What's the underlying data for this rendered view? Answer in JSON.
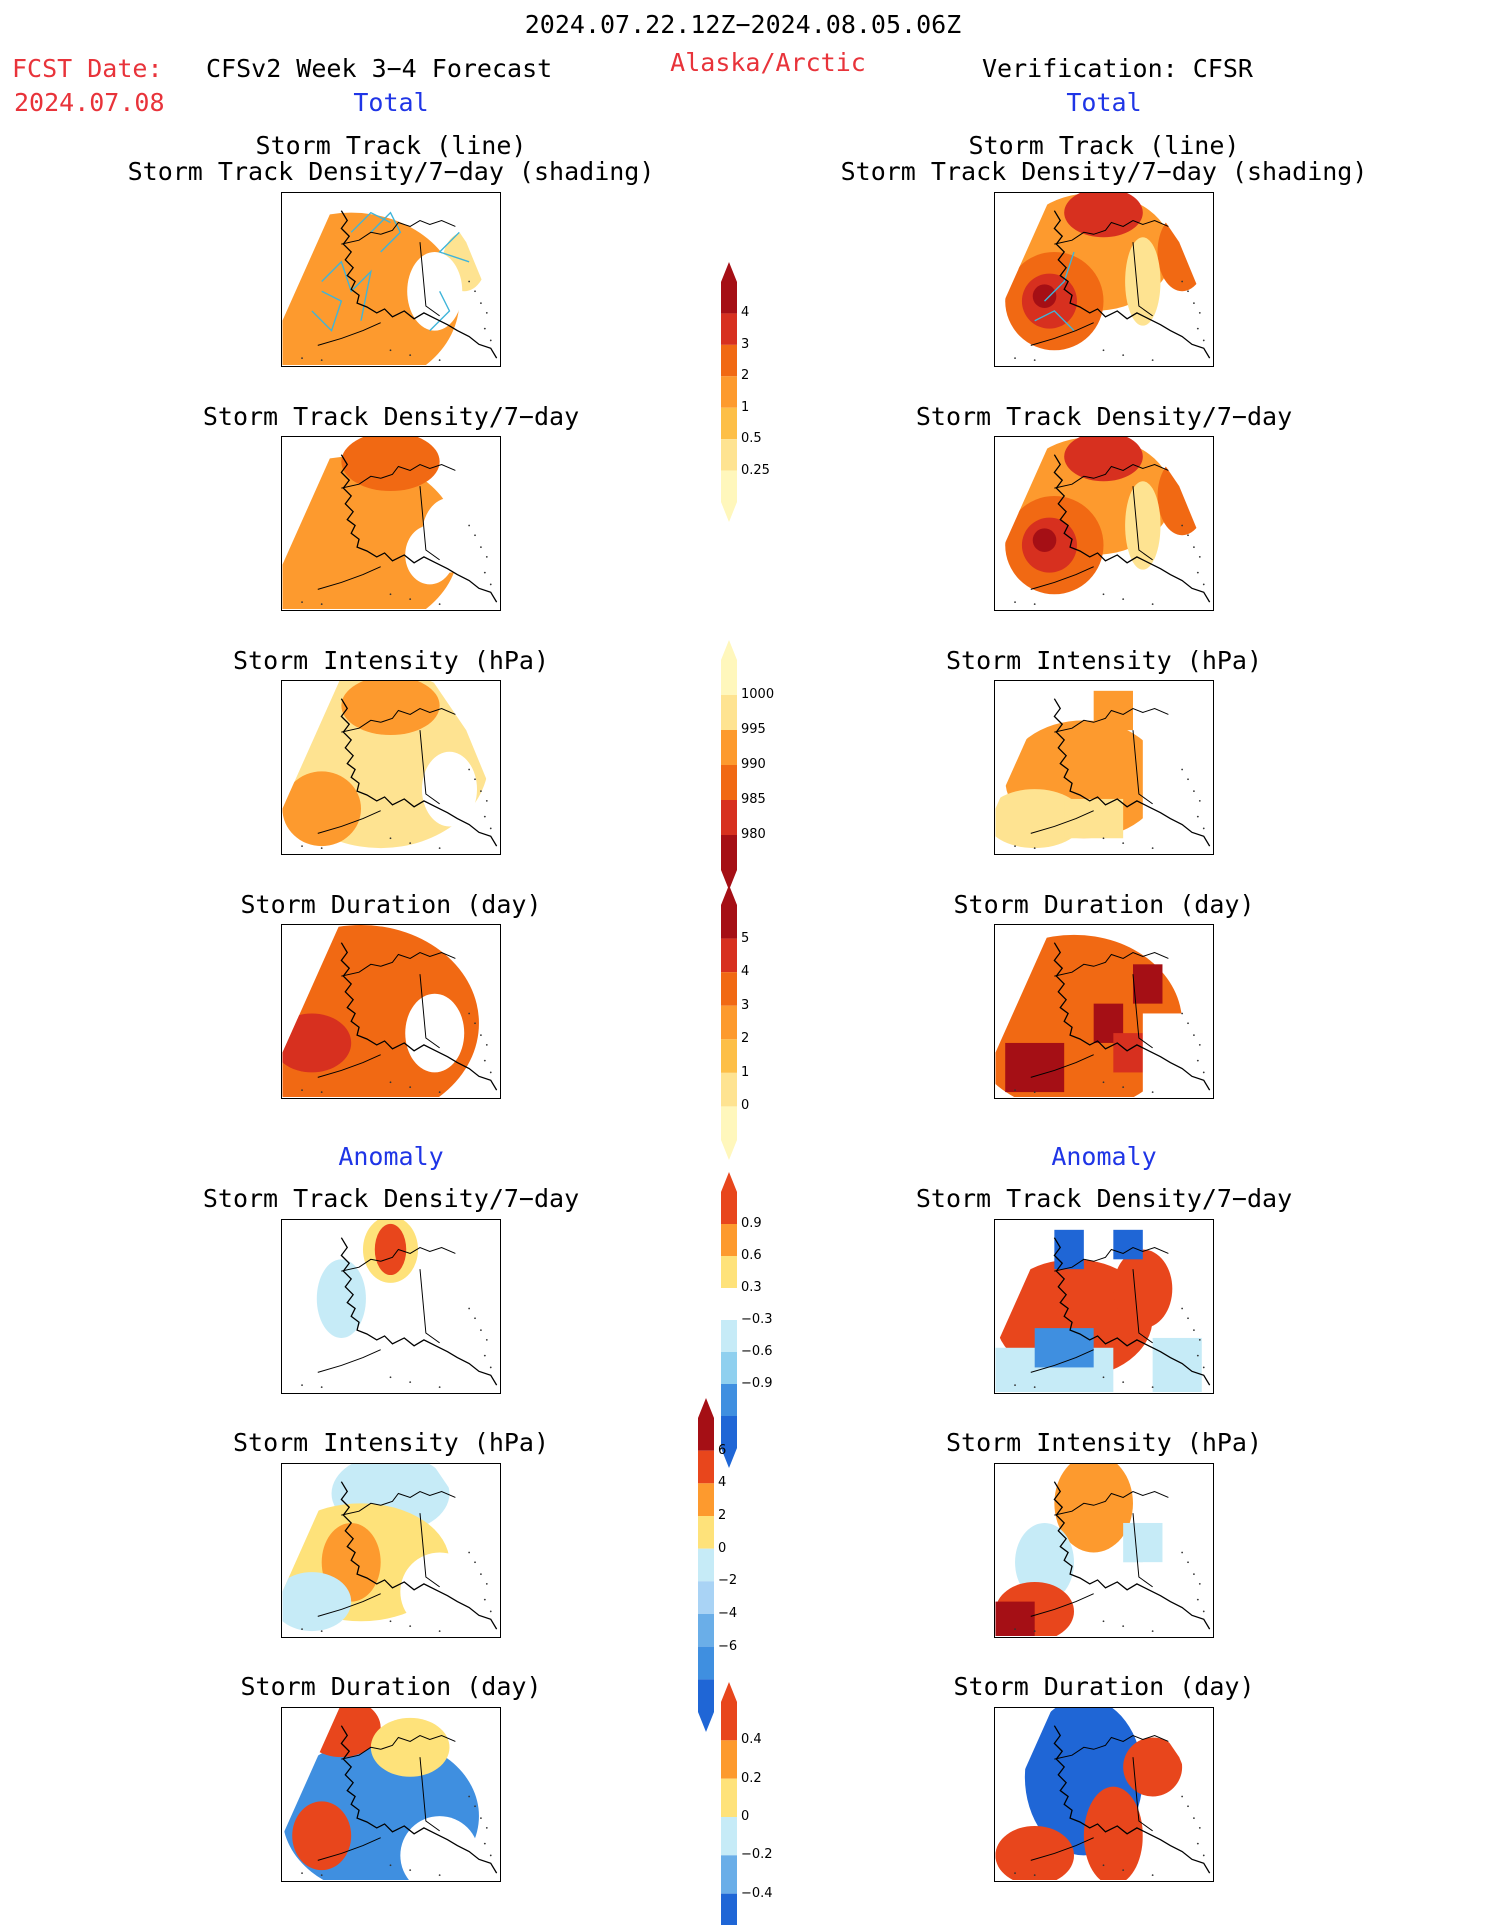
{
  "header": {
    "period": "2024.07.22.12Z−2024.08.05.06Z",
    "fcst_label": "FCST Date:",
    "fcst_date": "2024.07.08",
    "model": "CFSv2 Week 3−4 Forecast",
    "region": "Alaska/Arctic",
    "verification": "Verification: CFSR"
  },
  "columns": {
    "left": {
      "total": "Total",
      "anomaly": "Anomaly"
    },
    "right": {
      "total": "Total",
      "anomaly": "Anomaly"
    }
  },
  "titles": {
    "storm_track_line": "Storm Track (line)",
    "density_shading": "Storm Track Density/7−day (shading)",
    "density": "Storm Track Density/7−day",
    "intensity": "Storm Intensity (hPa)",
    "duration": "Storm Duration (day)"
  },
  "colorbars": {
    "density_total": {
      "labels": [
        "4",
        "3",
        "2",
        "1",
        "0.5",
        "0.25"
      ],
      "colors": [
        "#a50f15",
        "#d7301f",
        "#f16913",
        "#fd9a2e",
        "#fdbf47",
        "#fee391",
        "#fff7bc"
      ]
    },
    "intensity_total": {
      "labels": [
        "1000",
        "995",
        "990",
        "985",
        "980"
      ],
      "colors": [
        "#fff7bc",
        "#fee391",
        "#fd9a2e",
        "#f16913",
        "#d7301f",
        "#a50f15"
      ]
    },
    "duration_total": {
      "labels": [
        "5",
        "4",
        "3",
        "2",
        "1",
        "0"
      ],
      "colors": [
        "#a50f15",
        "#d7301f",
        "#f16913",
        "#fd9a2e",
        "#fdbf47",
        "#fee391",
        "#fff7bc"
      ]
    },
    "density_anom": {
      "labels": [
        "0.9",
        "0.6",
        "0.3",
        "−0.3",
        "−0.6",
        "−0.9"
      ],
      "colors": [
        "#e8461c",
        "#fd9a2e",
        "#fee27a",
        "#ffffff",
        "#c6ebf7",
        "#8fd0ef",
        "#3f8fe0",
        "#1f66d6"
      ]
    },
    "intensity_anom": {
      "labels": [
        "6",
        "4",
        "2",
        "0",
        "−2",
        "−4",
        "−6"
      ],
      "colors": [
        "#a50f15",
        "#e8461c",
        "#fd9a2e",
        "#fee27a",
        "#c6ebf7",
        "#a9d3f5",
        "#6aaee8",
        "#3f8fe0",
        "#1f66d6"
      ]
    },
    "duration_anom": {
      "labels": [
        "0.4",
        "0.2",
        "0",
        "−0.2",
        "−0.4"
      ],
      "colors": [
        "#e8461c",
        "#fd9a2e",
        "#fee27a",
        "#c6ebf7",
        "#6aaee8",
        "#1f66d6"
      ]
    }
  }
}
